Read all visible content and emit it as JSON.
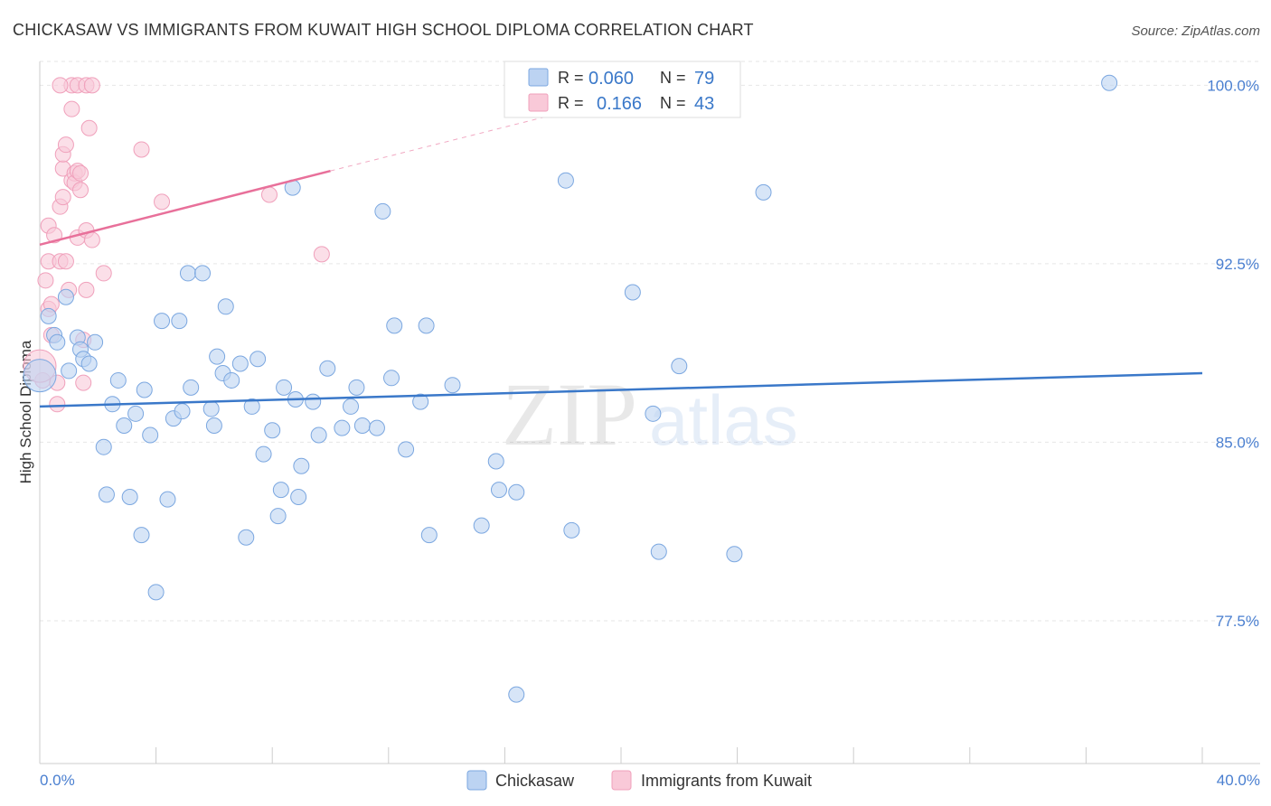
{
  "chart_data": {
    "type": "scatter",
    "title": "CHICKASAW VS IMMIGRANTS FROM KUWAIT HIGH SCHOOL DIPLOMA CORRELATION CHART",
    "source": "Source: ZipAtlas.com",
    "ylabel": "High School Diploma",
    "xlim": [
      0,
      40
    ],
    "ylim": [
      71.5,
      101
    ],
    "y_ticks": [
      77.5,
      85.0,
      92.5,
      100.0
    ],
    "y_tick_labels": [
      "77.5%",
      "85.0%",
      "92.5%",
      "100.0%"
    ],
    "x_tick_labels": [
      "0.0%",
      "40.0%"
    ],
    "colors": {
      "chickasaw": "#7ba7e0",
      "chickasaw_fill": "#bcd3f2",
      "chickasaw_line": "#3a78c9",
      "kuwait": "#f0a0bb",
      "kuwait_fill": "#f9c9d8",
      "kuwait_line": "#e8709a"
    },
    "legend": {
      "series1": {
        "r_label": "R = ",
        "r_value": "0.060",
        "n_label": "N = ",
        "n_value": "79"
      },
      "series2": {
        "r_label": "R = ",
        "r_value": "0.166",
        "n_label": "N = ",
        "n_value": "43"
      }
    },
    "series": [
      {
        "name": "Chickasaw",
        "trend": {
          "x": [
            0,
            40
          ],
          "y": [
            86.5,
            87.9
          ]
        },
        "points": [
          [
            0.0,
            87.8
          ],
          [
            0.3,
            90.3
          ],
          [
            0.5,
            89.5
          ],
          [
            0.6,
            89.2
          ],
          [
            0.9,
            91.1
          ],
          [
            1.0,
            88.0
          ],
          [
            1.3,
            89.4
          ],
          [
            1.4,
            88.9
          ],
          [
            1.5,
            88.5
          ],
          [
            1.7,
            88.3
          ],
          [
            1.9,
            89.2
          ],
          [
            2.2,
            84.8
          ],
          [
            2.3,
            82.8
          ],
          [
            2.5,
            86.6
          ],
          [
            2.7,
            87.6
          ],
          [
            2.9,
            85.7
          ],
          [
            3.1,
            82.7
          ],
          [
            3.3,
            86.2
          ],
          [
            3.5,
            81.1
          ],
          [
            3.6,
            87.2
          ],
          [
            3.8,
            85.3
          ],
          [
            4.0,
            78.7
          ],
          [
            4.2,
            90.1
          ],
          [
            4.4,
            82.6
          ],
          [
            4.6,
            86.0
          ],
          [
            4.8,
            90.1
          ],
          [
            4.9,
            86.3
          ],
          [
            5.1,
            92.1
          ],
          [
            5.2,
            87.3
          ],
          [
            5.6,
            92.1
          ],
          [
            5.9,
            86.4
          ],
          [
            6.0,
            85.7
          ],
          [
            6.1,
            88.6
          ],
          [
            6.3,
            87.9
          ],
          [
            6.4,
            90.7
          ],
          [
            6.6,
            87.6
          ],
          [
            6.9,
            88.3
          ],
          [
            7.1,
            81.0
          ],
          [
            7.3,
            86.5
          ],
          [
            7.5,
            88.5
          ],
          [
            7.7,
            84.5
          ],
          [
            8.0,
            85.5
          ],
          [
            8.2,
            81.9
          ],
          [
            8.3,
            83.0
          ],
          [
            8.4,
            87.3
          ],
          [
            8.7,
            95.7
          ],
          [
            8.8,
            86.8
          ],
          [
            8.9,
            82.7
          ],
          [
            9.0,
            84.0
          ],
          [
            9.4,
            86.7
          ],
          [
            9.6,
            85.3
          ],
          [
            9.9,
            88.1
          ],
          [
            10.4,
            85.6
          ],
          [
            10.7,
            86.5
          ],
          [
            10.9,
            87.3
          ],
          [
            11.1,
            85.7
          ],
          [
            11.6,
            85.6
          ],
          [
            11.8,
            94.7
          ],
          [
            12.1,
            87.7
          ],
          [
            12.2,
            89.9
          ],
          [
            12.6,
            84.7
          ],
          [
            13.1,
            86.7
          ],
          [
            13.3,
            89.9
          ],
          [
            13.4,
            81.1
          ],
          [
            14.2,
            87.4
          ],
          [
            15.2,
            81.5
          ],
          [
            15.7,
            84.2
          ],
          [
            15.8,
            83.0
          ],
          [
            16.4,
            82.9
          ],
          [
            18.1,
            96.0
          ],
          [
            18.3,
            81.3
          ],
          [
            20.4,
            91.3
          ],
          [
            21.1,
            86.2
          ],
          [
            21.3,
            80.4
          ],
          [
            22.0,
            88.2
          ],
          [
            23.9,
            80.3
          ],
          [
            24.9,
            95.5
          ],
          [
            16.4,
            74.4
          ],
          [
            36.8,
            100.1
          ]
        ]
      },
      {
        "name": "Immigrants from Kuwait",
        "trend": {
          "x": [
            0,
            10
          ],
          "y": [
            93.3,
            96.4
          ]
        },
        "trend_extension": {
          "x": [
            10,
            24
          ],
          "y": [
            96.4,
            100.7
          ]
        },
        "points": [
          [
            0.1,
            87.6
          ],
          [
            0.2,
            91.8
          ],
          [
            0.3,
            90.6
          ],
          [
            0.3,
            92.6
          ],
          [
            0.3,
            94.1
          ],
          [
            0.4,
            89.5
          ],
          [
            0.4,
            90.8
          ],
          [
            0.5,
            93.7
          ],
          [
            0.6,
            87.5
          ],
          [
            0.6,
            86.6
          ],
          [
            0.7,
            92.6
          ],
          [
            0.7,
            94.9
          ],
          [
            0.8,
            95.3
          ],
          [
            0.8,
            96.5
          ],
          [
            0.8,
            97.1
          ],
          [
            0.9,
            97.5
          ],
          [
            0.9,
            92.6
          ],
          [
            1.0,
            91.4
          ],
          [
            1.1,
            96.0
          ],
          [
            1.2,
            96.3
          ],
          [
            1.2,
            95.9
          ],
          [
            1.1,
            100.0
          ],
          [
            0.7,
            100.0
          ],
          [
            1.1,
            99.0
          ],
          [
            1.3,
            93.6
          ],
          [
            1.4,
            95.6
          ],
          [
            1.3,
            96.4
          ],
          [
            1.3,
            100.0
          ],
          [
            1.4,
            96.3
          ],
          [
            1.5,
            87.5
          ],
          [
            1.6,
            91.4
          ],
          [
            1.5,
            89.3
          ],
          [
            1.6,
            100.0
          ],
          [
            1.6,
            93.9
          ],
          [
            1.8,
            100.0
          ],
          [
            1.7,
            98.2
          ],
          [
            1.8,
            93.5
          ],
          [
            2.2,
            92.1
          ],
          [
            3.5,
            97.3
          ],
          [
            4.2,
            95.1
          ],
          [
            7.9,
            95.4
          ],
          [
            9.7,
            92.9
          ],
          [
            0.0,
            88.2
          ]
        ]
      }
    ],
    "bottom_legend": [
      "Chickasaw",
      "Immigrants from Kuwait"
    ],
    "watermark": {
      "part1": "ZIP",
      "part2": "atlas"
    }
  }
}
